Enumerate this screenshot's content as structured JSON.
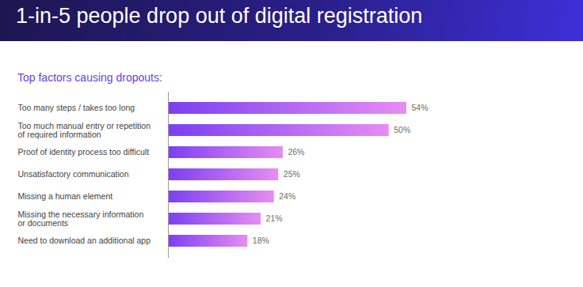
{
  "chart_data": {
    "type": "bar",
    "title": "1-in-5 people drop out of digital registration",
    "subtitle": "Top factors causing dropouts:",
    "orientation": "horizontal",
    "categories": [
      "Too many steps / takes too long",
      "Too much manual entry or repetition\nof required information",
      "Proof of identity process too difficult",
      "Unsatisfactory communication",
      "Missing a human element",
      "Missing the necessary information\nor documents",
      "Need to download an additional app"
    ],
    "values": [
      54,
      50,
      26,
      25,
      24,
      21,
      18
    ],
    "value_labels": [
      "54%",
      "50%",
      "26%",
      "25%",
      "24%",
      "21%",
      "18%"
    ],
    "color": "#7b3ff2",
    "data_labels": true,
    "tick_labels": "y",
    "grid": false
  }
}
